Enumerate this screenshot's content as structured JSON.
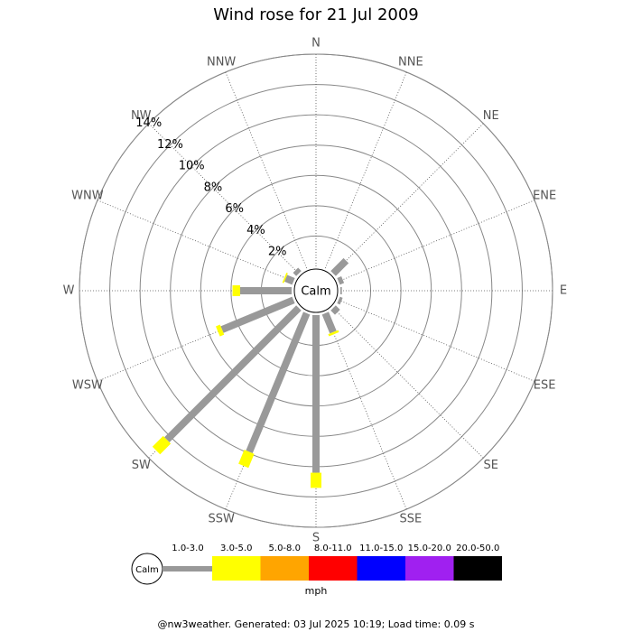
{
  "chart_data": {
    "type": "windrose",
    "title": "Wind rose for 21 Jul 2009",
    "categories": [
      "N",
      "NNE",
      "NE",
      "ENE",
      "E",
      "ESE",
      "SE",
      "SSE",
      "S",
      "SSW",
      "SW",
      "WSW",
      "W",
      "WNW",
      "NW",
      "NNW"
    ],
    "series": [
      {
        "name": "1.0-3.0",
        "color": "#999999",
        "values": [
          0,
          0,
          1.2,
          0.3,
          0.1,
          0.2,
          0.4,
          1.35,
          10.4,
          9.9,
          12.3,
          5.1,
          3.4,
          0.55,
          0.3,
          0
        ]
      },
      {
        "name": "3.0-5.0",
        "color": "#ffff00",
        "values": [
          0,
          0,
          0,
          0,
          0,
          0,
          0,
          0.15,
          1.0,
          1.0,
          1.0,
          0.3,
          0.5,
          0.1,
          0,
          0
        ]
      },
      {
        "name": "5.0-8.0",
        "color": "#ffa500",
        "values": [
          0,
          0,
          0,
          0,
          0,
          0,
          0,
          0,
          0,
          0,
          0,
          0,
          0,
          0,
          0,
          0
        ]
      },
      {
        "name": "8.0-11.0",
        "color": "#ff0000",
        "values": [
          0,
          0,
          0,
          0,
          0,
          0,
          0,
          0,
          0,
          0,
          0,
          0,
          0,
          0,
          0,
          0
        ]
      },
      {
        "name": "11.0-15.0",
        "color": "#0000ff",
        "values": [
          0,
          0,
          0,
          0,
          0,
          0,
          0,
          0,
          0,
          0,
          0,
          0,
          0,
          0,
          0,
          0
        ]
      },
      {
        "name": "15.0-20.0",
        "color": "#a020f0",
        "values": [
          0,
          0,
          0,
          0,
          0,
          0,
          0,
          0,
          0,
          0,
          0,
          0,
          0,
          0,
          0,
          0
        ]
      },
      {
        "name": "20.0-50.0",
        "color": "#000000",
        "values": [
          0,
          0,
          0,
          0,
          0,
          0,
          0,
          0,
          0,
          0,
          0,
          0,
          0,
          0,
          0,
          0
        ]
      }
    ],
    "rlim": [
      0,
      14
    ],
    "rticks": [
      {
        "value": 2,
        "label": "2%"
      },
      {
        "value": 4,
        "label": "4%"
      },
      {
        "value": 6,
        "label": "6%"
      },
      {
        "value": 8,
        "label": "8%"
      },
      {
        "value": 10,
        "label": "10%"
      },
      {
        "value": 12,
        "label": "12%"
      },
      {
        "value": 14,
        "label": "14%"
      }
    ],
    "calm_label": "Calm",
    "unit": "mph",
    "footer": "@nw3weather. Generated: 03 Jul 2025 10:19; Load time: 0.09 s"
  }
}
